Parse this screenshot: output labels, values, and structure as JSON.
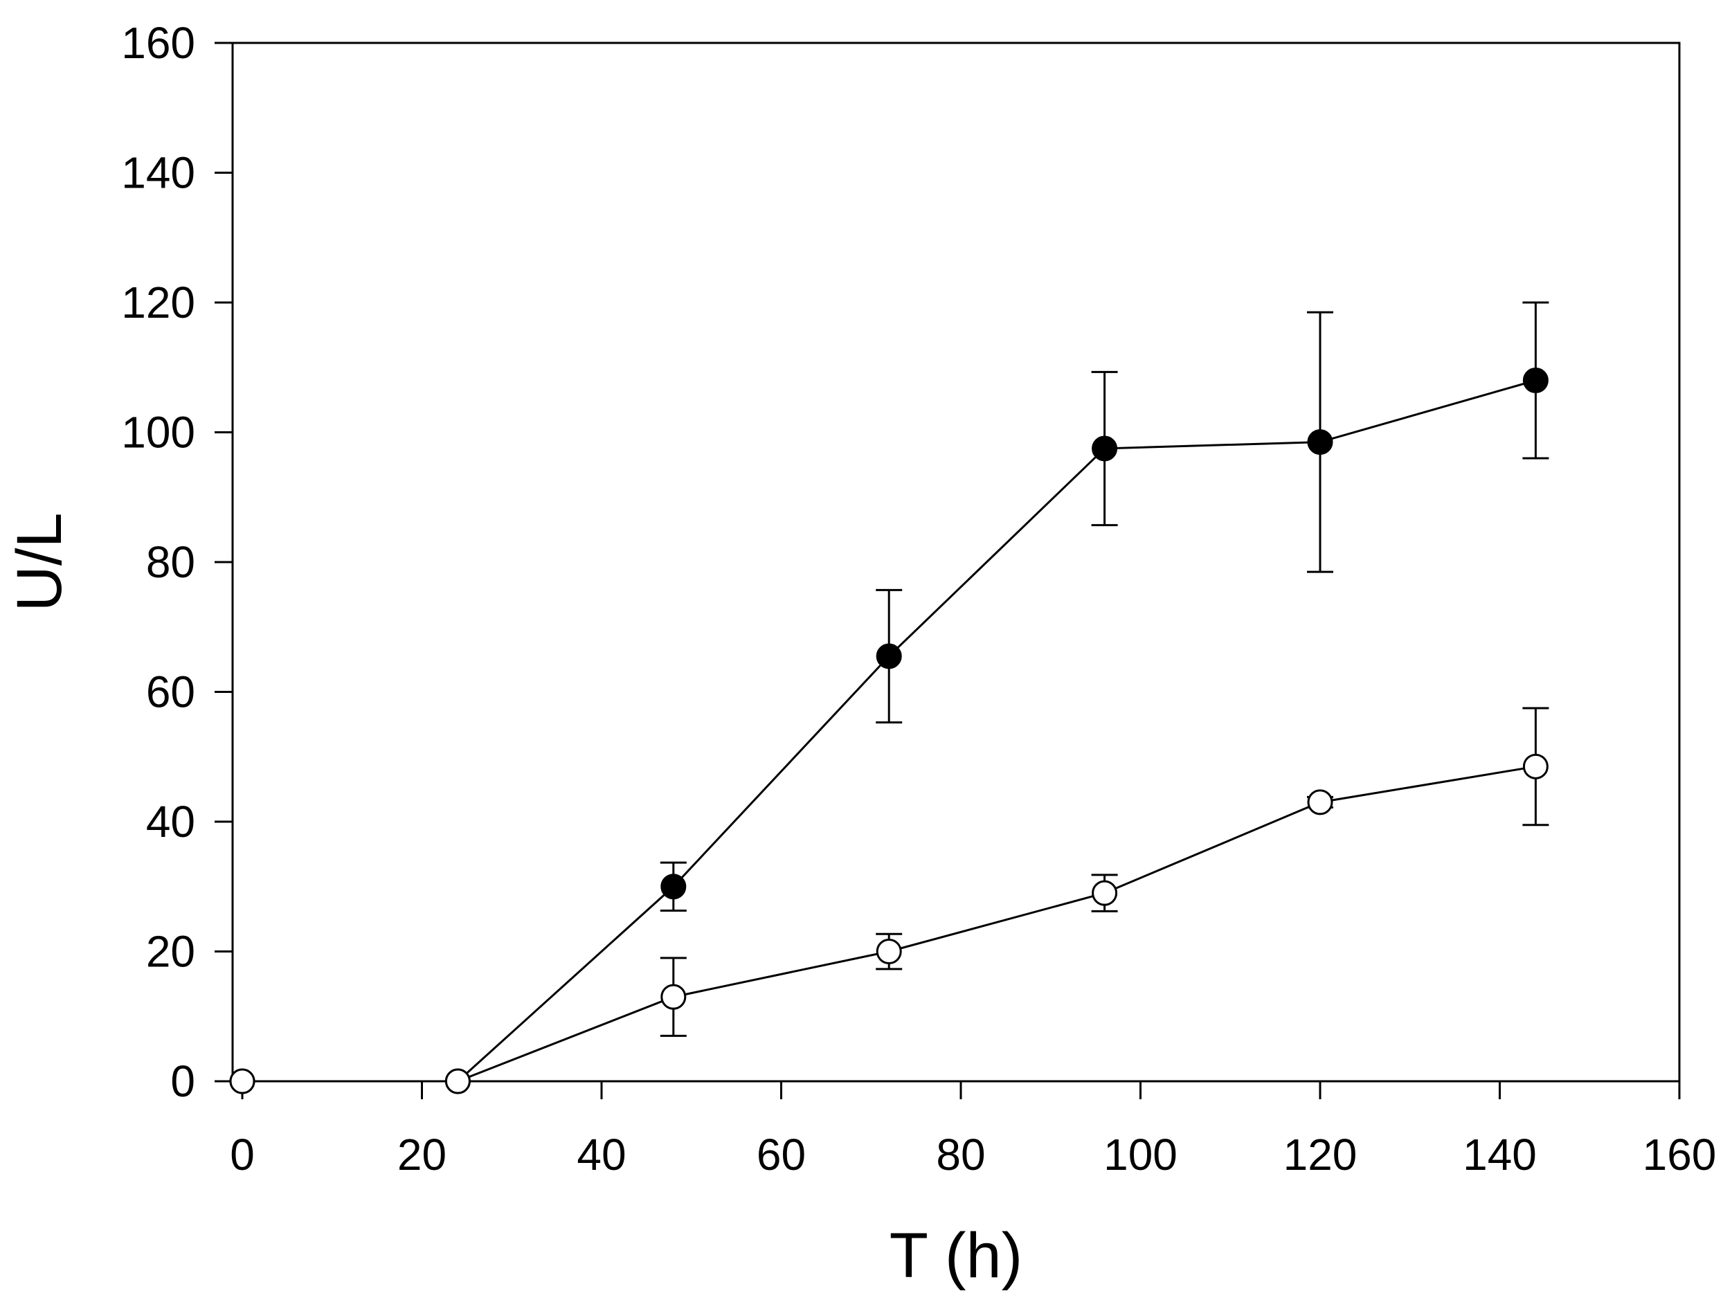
{
  "chart_data": {
    "type": "line",
    "title": "",
    "xlabel": "T (h)",
    "ylabel": "U/L",
    "xlim": [
      0,
      160
    ],
    "ylim": [
      0,
      160
    ],
    "xticks": [
      0,
      20,
      40,
      60,
      80,
      100,
      120,
      140,
      160
    ],
    "yticks": [
      0,
      20,
      40,
      60,
      80,
      100,
      120,
      140,
      160
    ],
    "grid": false,
    "legend": "none",
    "series": [
      {
        "name": "filled circles",
        "marker": "filled-circle",
        "color": "#000000",
        "x": [
          0,
          24,
          48,
          72,
          96,
          120,
          144
        ],
        "y": [
          0,
          0,
          30,
          65.5,
          97.5,
          98.5,
          108
        ],
        "error": [
          0,
          0,
          3.7,
          10.2,
          11.8,
          20,
          12
        ]
      },
      {
        "name": "open circles",
        "marker": "open-circle",
        "color": "#000000",
        "x": [
          0,
          24,
          48,
          72,
          96,
          120,
          144
        ],
        "y": [
          0,
          0,
          13,
          20,
          29,
          43,
          48.5
        ],
        "error": [
          0,
          0,
          6,
          2.7,
          2.8,
          0.8,
          9
        ]
      }
    ]
  }
}
